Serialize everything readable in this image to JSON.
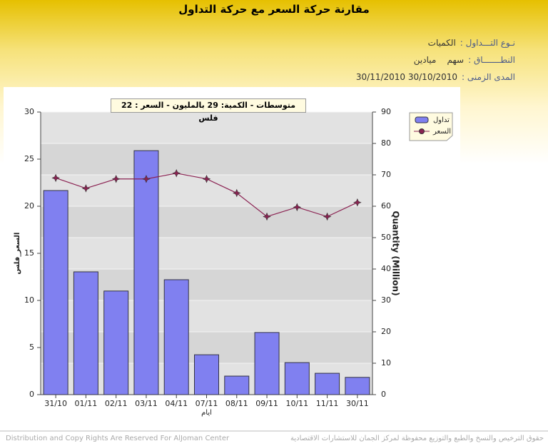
{
  "header": {
    "title": "مقارنة حركة السعر مع حركة التداول",
    "info": [
      {
        "label": "نـوع التـــداول :",
        "value": "الكميات"
      },
      {
        "label": "النطـــــــاق :",
        "value": "سهم    ميادين"
      },
      {
        "label": "المدى الزمنى :",
        "value": "30/11/2010 30/10/2010"
      }
    ]
  },
  "chart_data": {
    "type": "combo",
    "annotation": "متوسطات - الكمية: 29 بالمليون  - السعر : 22 فلس",
    "x_label": "ايام",
    "y_label": "السعر_فلس",
    "y2_label": "Quantity (Million)",
    "categories": [
      "31/10",
      "01/11",
      "02/11",
      "03/11",
      "04/11",
      "07/11",
      "08/11",
      "09/11",
      "10/11",
      "11/11",
      "30/11"
    ],
    "series": [
      {
        "name": "تداول",
        "type": "bar",
        "axis": "y2",
        "color": "#8080f0",
        "values": [
          65,
          39.1,
          33,
          77.7,
          36.6,
          12.7,
          5.9,
          19.8,
          10.2,
          6.8,
          5.5
        ]
      },
      {
        "name": "السعر",
        "type": "line",
        "axis": "y",
        "color": "#8b2252",
        "values": [
          23,
          21.9,
          22.9,
          22.9,
          23.5,
          22.9,
          21.4,
          18.9,
          19.9,
          18.9,
          20.4
        ]
      }
    ],
    "ylim": [
      0,
      30
    ],
    "yticks": [
      0,
      5,
      10,
      15,
      20,
      25,
      30
    ],
    "y2lim": [
      0,
      90
    ],
    "y2ticks": [
      0,
      10,
      20,
      30,
      40,
      50,
      60,
      70,
      80,
      90
    ],
    "grid": true,
    "legend": "top-right"
  },
  "footer": {
    "left": "Distribution and Copy Rights Are Reserved For AlJoman Center",
    "right": "حقوق الترخيص والنسخ والطبع والتوزيع محفوظة لمركز الجمان للاستشارات الاقتصادية"
  }
}
